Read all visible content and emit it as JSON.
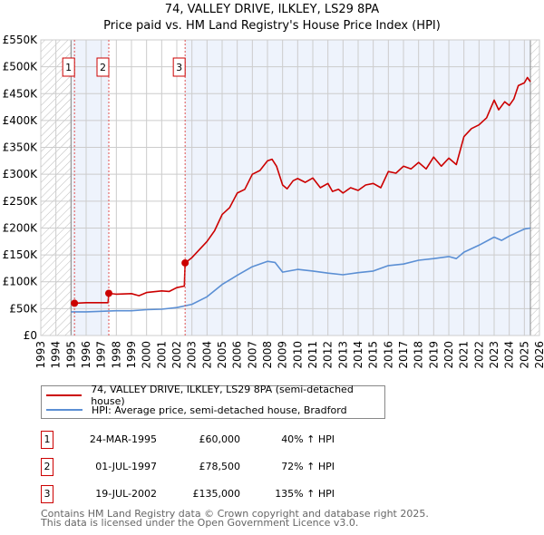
{
  "title_line1": "74, VALLEY DRIVE, ILKLEY, LS29 8PA",
  "title_line2": "Price paid vs. HM Land Registry's House Price Index (HPI)",
  "colors": {
    "property": "#cc0000",
    "hpi": "#5b8fd4",
    "shade": "#eef3fc",
    "grid": "#cccccc"
  },
  "chart_data": {
    "type": "line",
    "title": "74, VALLEY DRIVE, ILKLEY, LS29 8PA — Price paid vs. HM Land Registry's House Price Index (HPI)",
    "xlim": [
      1993,
      2026
    ],
    "ylim": [
      0,
      550000
    ],
    "x_ticks": [
      "1993",
      "1994",
      "1995",
      "1996",
      "1997",
      "1998",
      "1999",
      "2000",
      "2001",
      "2002",
      "2003",
      "2004",
      "2005",
      "2006",
      "2007",
      "2008",
      "2009",
      "2010",
      "2011",
      "2012",
      "2013",
      "2014",
      "2015",
      "2016",
      "2017",
      "2018",
      "2019",
      "2020",
      "2021",
      "2022",
      "2023",
      "2024",
      "2025",
      "2026"
    ],
    "y_ticks": [
      {
        "v": 0,
        "label": "£0"
      },
      {
        "v": 50000,
        "label": "£50K"
      },
      {
        "v": 100000,
        "label": "£100K"
      },
      {
        "v": 150000,
        "label": "£150K"
      },
      {
        "v": 200000,
        "label": "£200K"
      },
      {
        "v": 250000,
        "label": "£250K"
      },
      {
        "v": 300000,
        "label": "£300K"
      },
      {
        "v": 350000,
        "label": "£350K"
      },
      {
        "v": 400000,
        "label": "£400K"
      },
      {
        "v": 450000,
        "label": "£450K"
      },
      {
        "v": 500000,
        "label": "£500K"
      },
      {
        "v": 550000,
        "label": "£550K"
      }
    ],
    "grid": true,
    "legend_placement": "below",
    "series": [
      {
        "name": "74, VALLEY DRIVE, ILKLEY, LS29 8PA (semi-detached house)",
        "x": [
          1995.23,
          1996,
          1997,
          1997.45,
          1997.5,
          1998,
          1999,
          1999.5,
          2000,
          2001,
          2001.5,
          2002,
          2002.5,
          2002.55,
          2003,
          2003.5,
          2004,
          2004.5,
          2005,
          2005.5,
          2006,
          2006.5,
          2007,
          2007.5,
          2008,
          2008.3,
          2008.6,
          2009,
          2009.3,
          2009.7,
          2010,
          2010.5,
          2011,
          2011.5,
          2012,
          2012.3,
          2012.7,
          2013,
          2013.5,
          2014,
          2014.5,
          2015,
          2015.5,
          2016,
          2016.5,
          2017,
          2017.5,
          2018,
          2018.5,
          2019,
          2019.5,
          2020,
          2020.5,
          2021,
          2021.5,
          2022,
          2022.5,
          2023,
          2023.3,
          2023.7,
          2024,
          2024.3,
          2024.6,
          2025,
          2025.2,
          2025.4
        ],
        "y": [
          60000,
          61000,
          61000,
          61000,
          78500,
          77000,
          78000,
          74000,
          80000,
          83000,
          82000,
          89000,
          92000,
          135000,
          145000,
          160000,
          175000,
          195000,
          225000,
          238000,
          265000,
          272000,
          300000,
          307000,
          325000,
          328000,
          315000,
          280000,
          273000,
          288000,
          292000,
          285000,
          293000,
          275000,
          283000,
          268000,
          272000,
          265000,
          275000,
          270000,
          280000,
          283000,
          275000,
          305000,
          302000,
          315000,
          310000,
          322000,
          310000,
          332000,
          315000,
          330000,
          318000,
          370000,
          385000,
          392000,
          405000,
          438000,
          420000,
          435000,
          428000,
          440000,
          465000,
          470000,
          480000,
          472000
        ]
      },
      {
        "name": "HPI: Average price, semi-detached house, Bradford",
        "x": [
          1995,
          1996,
          1997,
          1998,
          1999,
          2000,
          2001,
          2002,
          2003,
          2004,
          2005,
          2006,
          2007,
          2008,
          2008.5,
          2009,
          2010,
          2011,
          2012,
          2013,
          2014,
          2015,
          2016,
          2017,
          2018,
          2019,
          2020,
          2020.5,
          2021,
          2022,
          2023,
          2023.5,
          2024,
          2025,
          2025.4
        ],
        "y": [
          44000,
          44000,
          45000,
          46000,
          46000,
          48000,
          49000,
          52000,
          58000,
          72000,
          95000,
          112000,
          128000,
          138000,
          136000,
          118000,
          123000,
          120000,
          116000,
          113000,
          117000,
          120000,
          130000,
          133000,
          140000,
          143000,
          147000,
          143000,
          155000,
          168000,
          183000,
          177000,
          185000,
          198000,
          200000
        ]
      }
    ],
    "sales": [
      {
        "id": "1",
        "x": 1995.23,
        "y": 60000
      },
      {
        "id": "2",
        "x": 1997.5,
        "y": 78500
      },
      {
        "id": "3",
        "x": 2002.55,
        "y": 135000
      }
    ]
  },
  "legend": {
    "property": "74, VALLEY DRIVE, ILKLEY, LS29 8PA (semi-detached house)",
    "hpi": "HPI: Average price, semi-detached house, Bradford"
  },
  "transactions": [
    {
      "id": "1",
      "date": "24-MAR-1995",
      "price": "£60,000",
      "hpi": "40% ↑ HPI"
    },
    {
      "id": "2",
      "date": "01-JUL-1997",
      "price": "£78,500",
      "hpi": "72% ↑ HPI"
    },
    {
      "id": "3",
      "date": "19-JUL-2002",
      "price": "£135,000",
      "hpi": "135% ↑ HPI"
    }
  ],
  "footer": {
    "line1": "Contains HM Land Registry data © Crown copyright and database right 2025.",
    "line2": "This data is licensed under the Open Government Licence v3.0."
  }
}
